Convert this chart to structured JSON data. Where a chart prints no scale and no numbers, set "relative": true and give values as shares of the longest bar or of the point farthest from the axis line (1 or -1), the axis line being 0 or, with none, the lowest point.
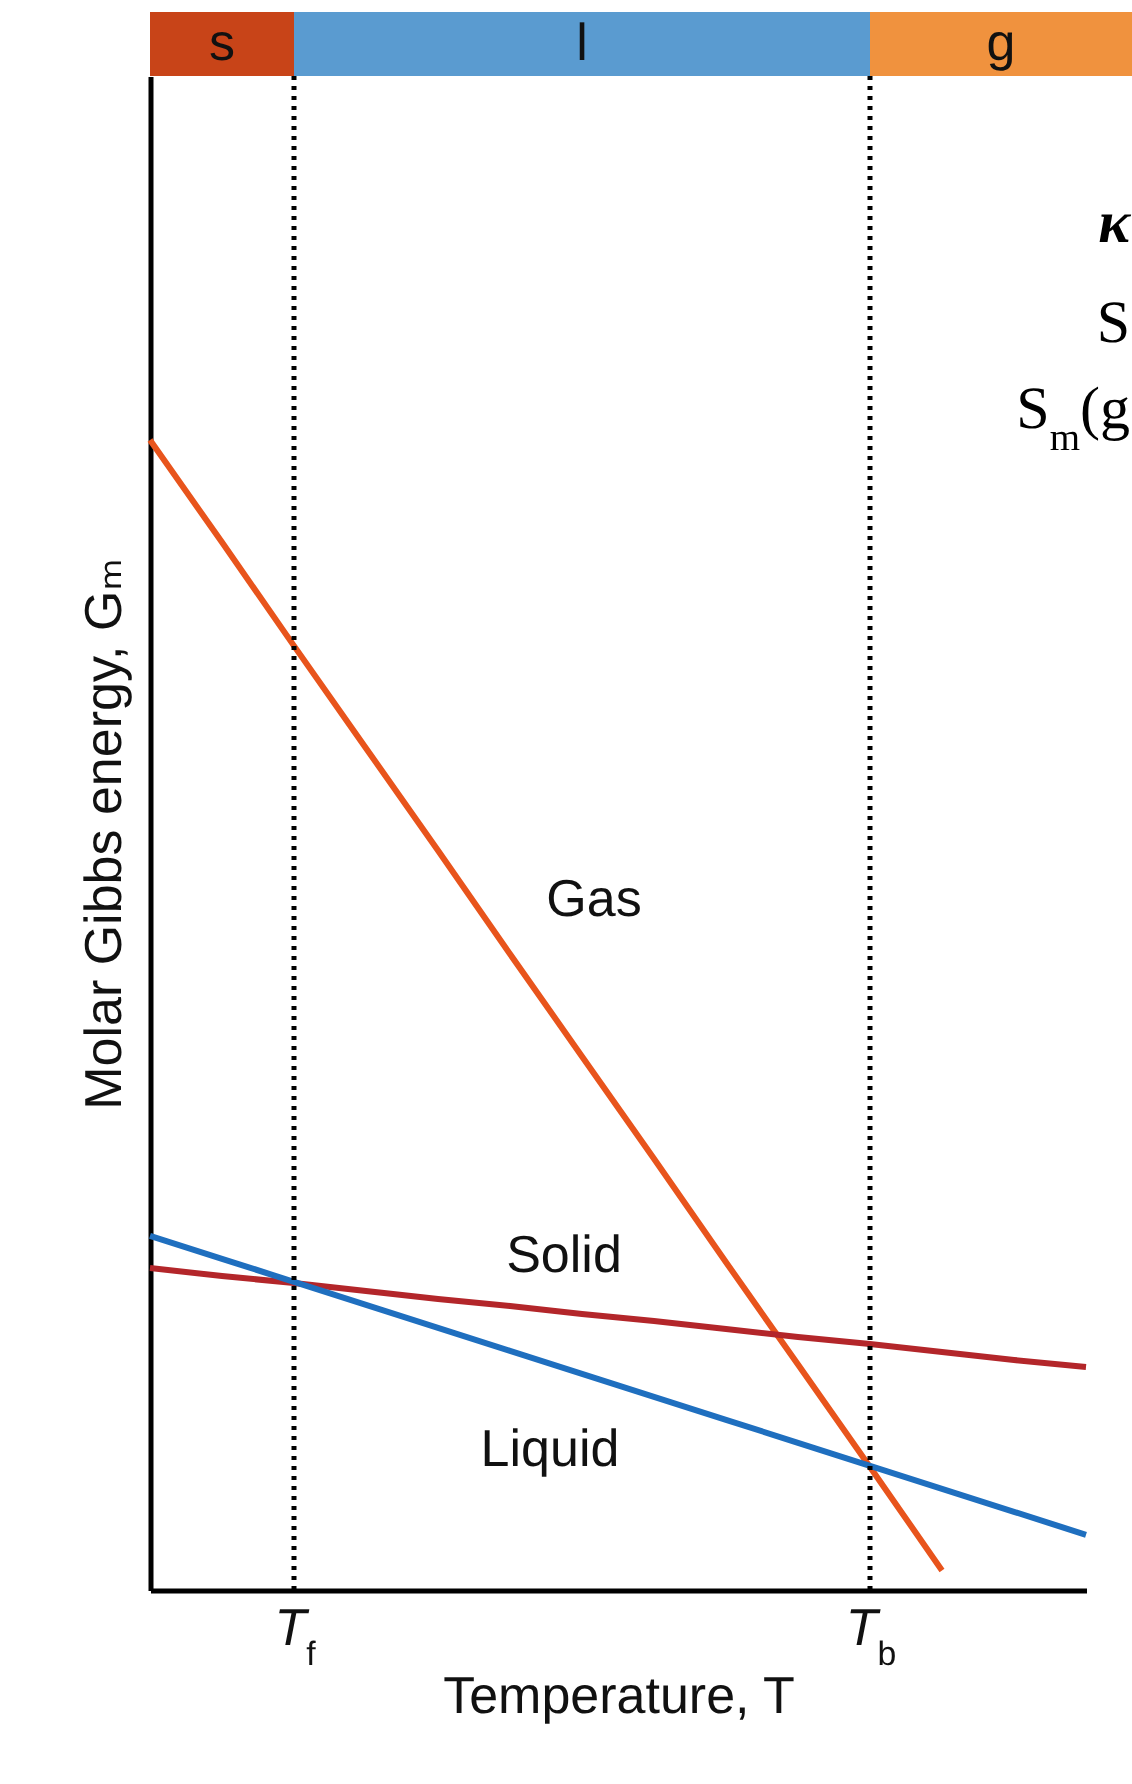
{
  "chart_data": [
    {
      "type": "other",
      "categories": [
        "s",
        "l",
        "g"
      ],
      "colors": [
        "#c84418",
        "#5a9bd0",
        "#f0923e"
      ]
    },
    {
      "type": "line",
      "relative": true,
      "xlabel": "Temperature, T",
      "ylabel": "Molar Gibbs energy, Gₘ",
      "categories": [
        null,
        null,
        "T$_{f}$",
        null,
        null,
        null,
        null,
        null,
        null,
        null,
        "T$_{b}$",
        null,
        null,
        null
      ],
      "tick_labels": "x",
      "grid": false,
      "legend": false,
      "marker": "none",
      "line_style": "solid",
      "series": [
        {
          "name": "Gas",
          "color": "#e8541c",
          "values": [
            1,
            0.911,
            0.821,
            0.732,
            0.643,
            0.553,
            0.464,
            0.375,
            0.285,
            0.196,
            0.107,
            0.017,
            null,
            null
          ]
        },
        {
          "name": "Solid",
          "color": "#b3262a",
          "values": [
            0.28,
            0.273,
            0.267,
            0.26,
            0.253,
            0.247,
            0.24,
            0.234,
            0.227,
            0.22,
            0.214,
            0.207,
            0.2,
            0.194
          ]
        },
        {
          "name": "Liquid",
          "color": "#1f6fbf",
          "values": [
            0.308,
            0.288,
            0.268,
            0.248,
            0.228,
            0.208,
            0.188,
            0.168,
            0.148,
            0.128,
            0.108,
            0.088,
            0.068,
            0.048
          ]
        }
      ],
      "ref_lines": [
        {
          "axis": "x",
          "value": "T$_{f}$",
          "color": "#000000",
          "line_style": "dotted"
        },
        {
          "axis": "x",
          "value": "T$_{b}$",
          "color": "#000000",
          "line_style": "dotted"
        }
      ],
      "annotations": [
        "κ",
        "S",
        "S$_{m}$(g"
      ]
    }
  ]
}
